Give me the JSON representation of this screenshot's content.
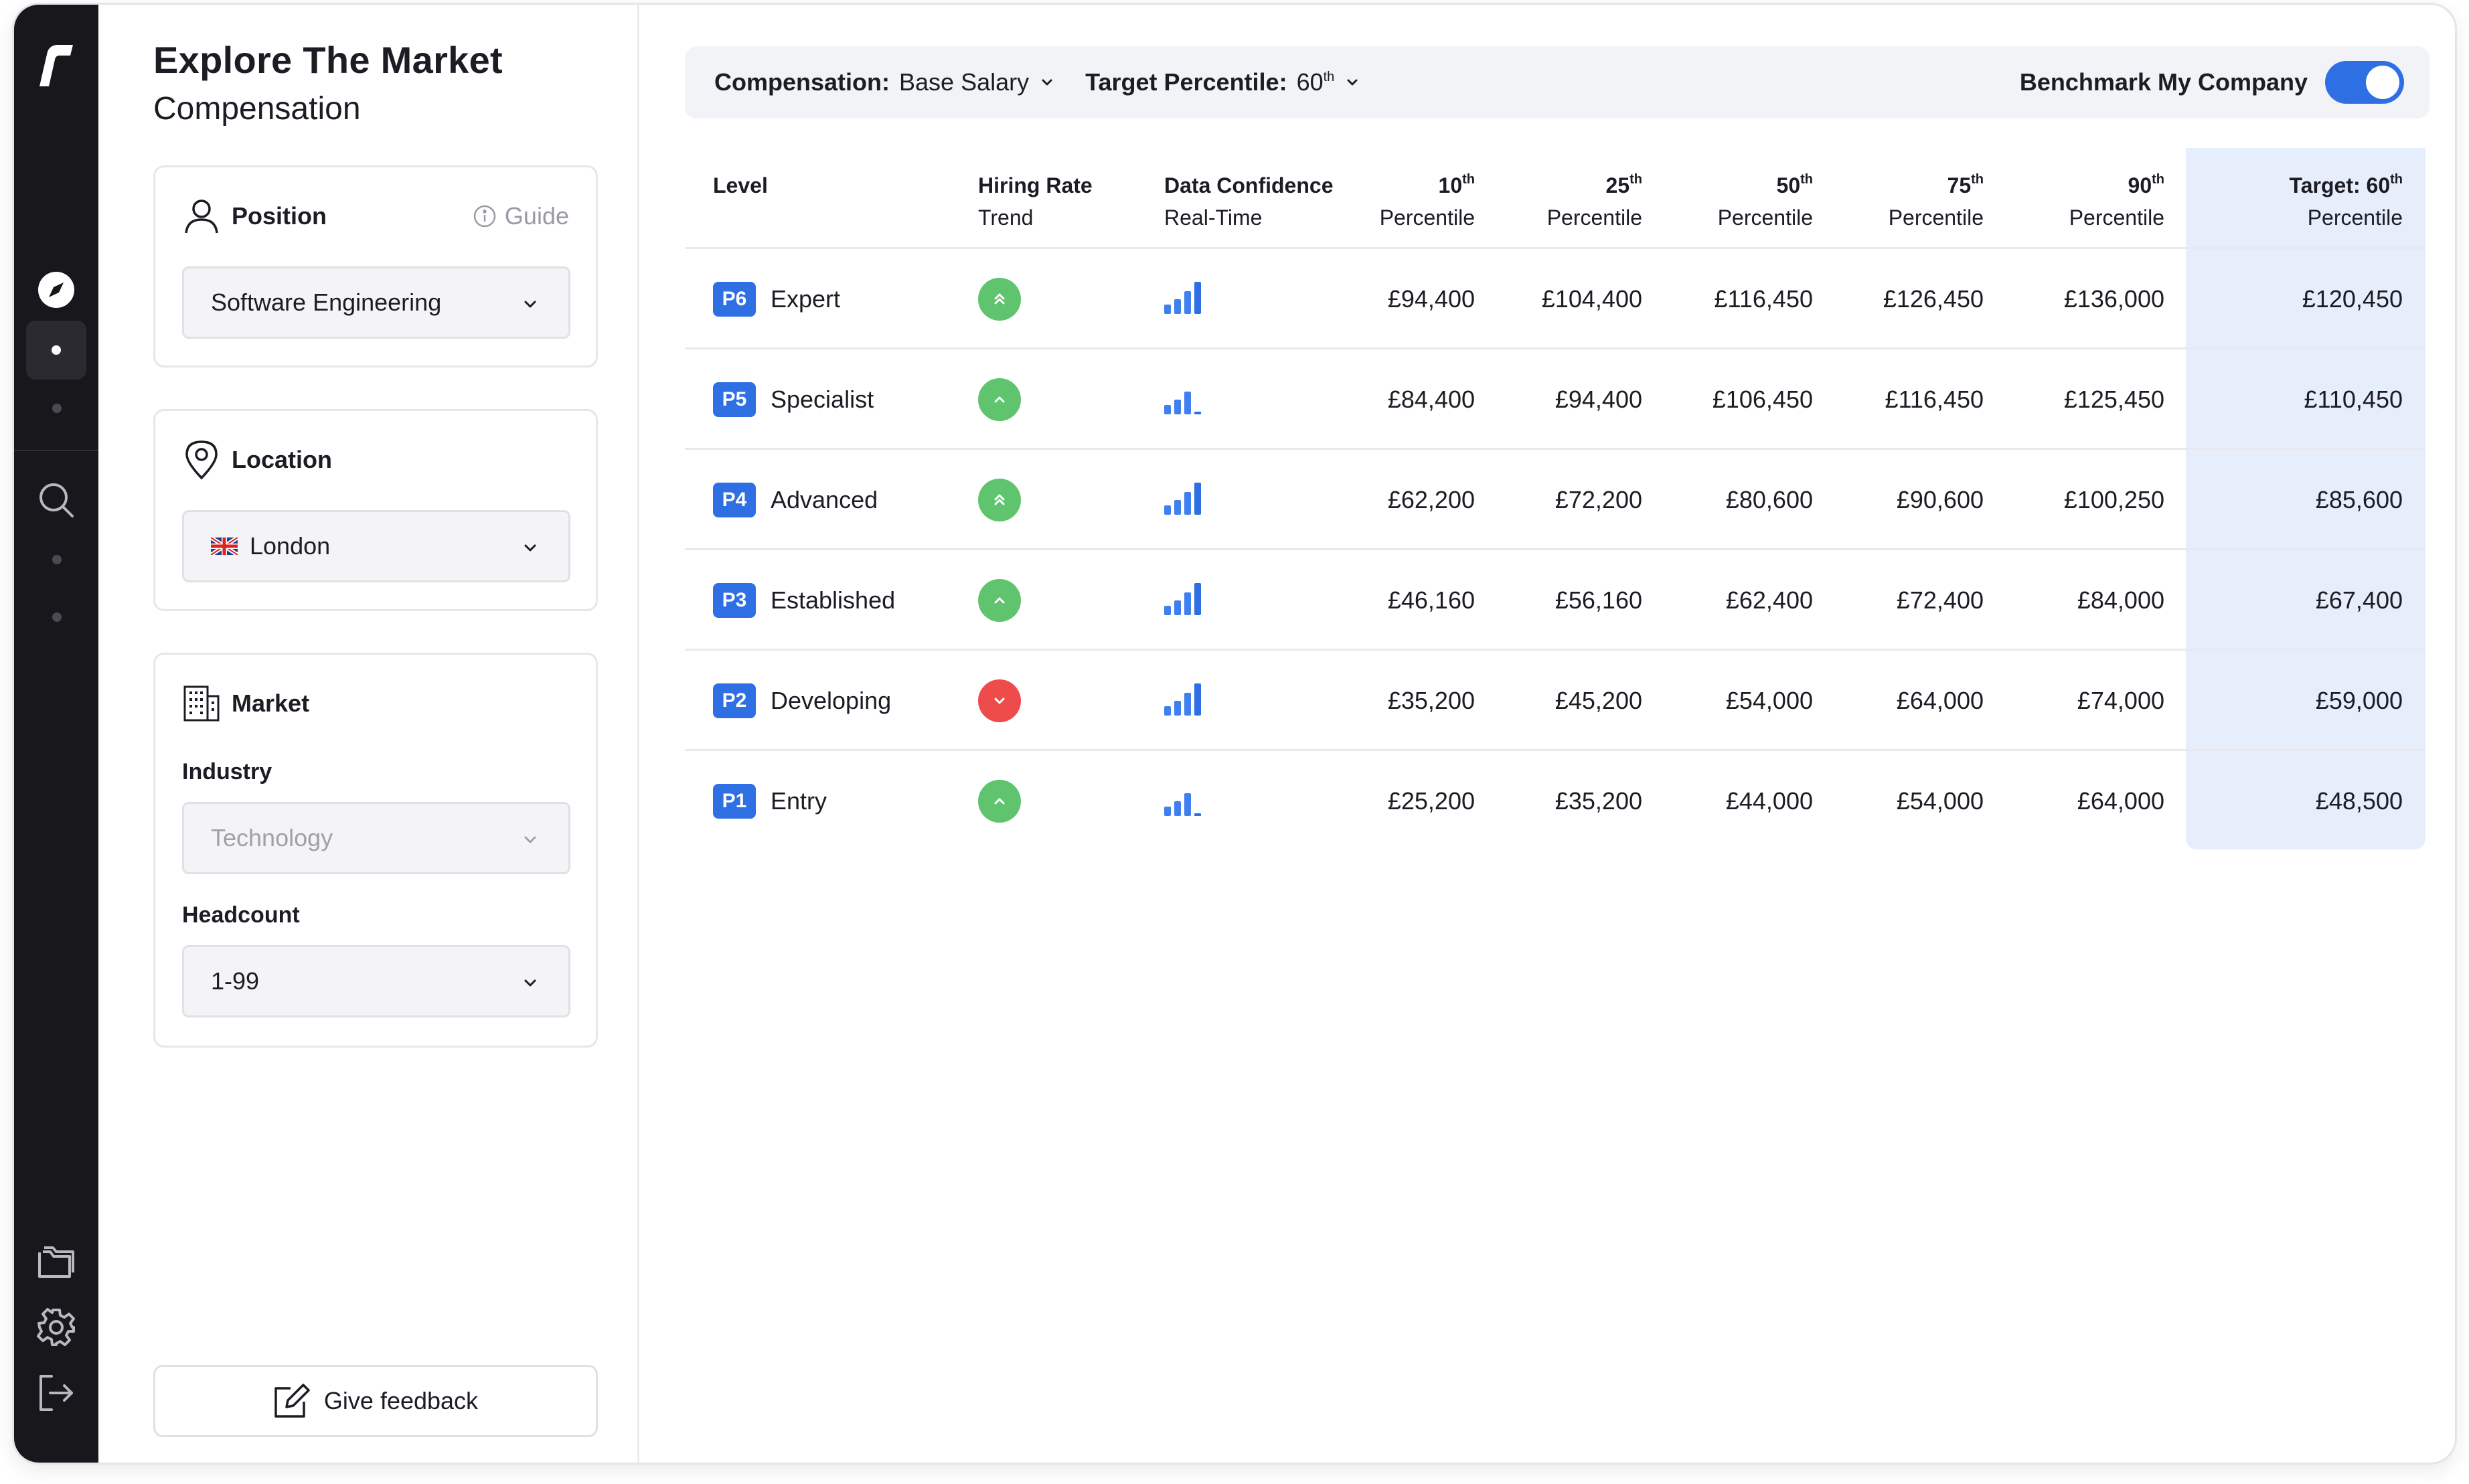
{
  "colors": {
    "accent": "#2f6fe4",
    "trend_up": "#5fc46d",
    "trend_down": "#ee4b4b",
    "target_col": "#e6eefb"
  },
  "header": {
    "title": "Explore The Market",
    "subtitle": "Compensation"
  },
  "position": {
    "label": "Position",
    "guide": "Guide",
    "value": "Software Engineering"
  },
  "location": {
    "label": "Location",
    "value": "London"
  },
  "market": {
    "label": "Market",
    "industry_label": "Industry",
    "industry_value": "Technology",
    "headcount_label": "Headcount",
    "headcount_value": "1-99"
  },
  "feedback": {
    "label": "Give feedback"
  },
  "filters": {
    "compensation_label": "Compensation:",
    "compensation_value": "Base Salary",
    "target_label": "Target Percentile:",
    "target_value": "60",
    "target_sup": "th",
    "benchmark_label": "Benchmark My Company",
    "benchmark_on": true
  },
  "table": {
    "columns": {
      "level": "Level",
      "hiring_1": "Hiring Rate",
      "hiring_2": "Trend",
      "conf_1": "Data Confidence",
      "conf_2": "Real-Time",
      "p10": "10",
      "p25": "25",
      "p50": "50",
      "p75": "75",
      "p90": "90",
      "sup": "th",
      "pct": "Percentile",
      "target": "Target: 60"
    },
    "rows": [
      {
        "code": "P6",
        "name": "Expert",
        "trend": "double-up",
        "confidence": 4,
        "p10": "£94,400",
        "p25": "£104,400",
        "p50": "£116,450",
        "p75": "£126,450",
        "p90": "£136,000",
        "target": "£120,450"
      },
      {
        "code": "P5",
        "name": "Specialist",
        "trend": "up",
        "confidence": 3,
        "p10": "£84,400",
        "p25": "£94,400",
        "p50": "£106,450",
        "p75": "£116,450",
        "p90": "£125,450",
        "target": "£110,450"
      },
      {
        "code": "P4",
        "name": "Advanced",
        "trend": "double-up",
        "confidence": 4,
        "p10": "£62,200",
        "p25": "£72,200",
        "p50": "£80,600",
        "p75": "£90,600",
        "p90": "£100,250",
        "target": "£85,600"
      },
      {
        "code": "P3",
        "name": "Established",
        "trend": "up",
        "confidence": 4,
        "p10": "£46,160",
        "p25": "£56,160",
        "p50": "£62,400",
        "p75": "£72,400",
        "p90": "£84,000",
        "target": "£67,400"
      },
      {
        "code": "P2",
        "name": "Developing",
        "trend": "down",
        "confidence": 4,
        "p10": "£35,200",
        "p25": "£45,200",
        "p50": "£54,000",
        "p75": "£64,000",
        "p90": "£74,000",
        "target": "£59,000"
      },
      {
        "code": "P1",
        "name": "Entry",
        "trend": "up",
        "confidence": 3,
        "p10": "£25,200",
        "p25": "£35,200",
        "p50": "£44,000",
        "p75": "£54,000",
        "p90": "£64,000",
        "target": "£48,500"
      }
    ]
  },
  "sidebar": {
    "icons": [
      "logo-icon",
      "compass-icon",
      "search-icon",
      "folder-icon",
      "gear-icon",
      "logout-icon"
    ]
  }
}
